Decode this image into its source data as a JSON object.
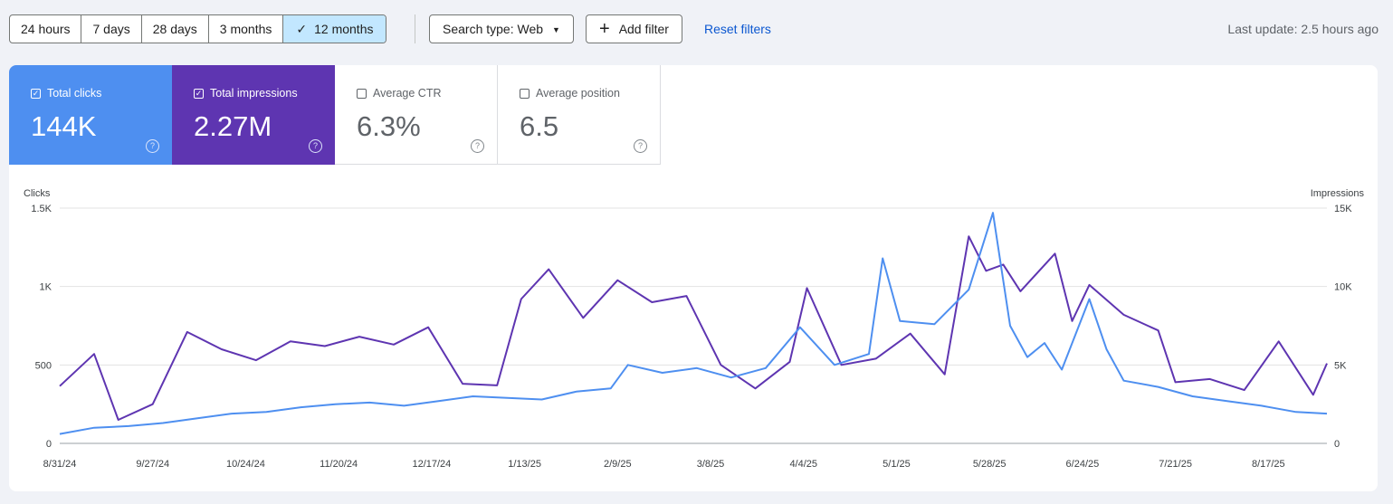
{
  "toolbar": {
    "ranges": [
      "24 hours",
      "7 days",
      "28 days",
      "3 months",
      "12 months"
    ],
    "active_range": "12 months",
    "search_type": "Search type: Web",
    "add_filter": "Add filter",
    "reset_filters": "Reset filters",
    "last_update": "Last update: 2.5 hours ago"
  },
  "metrics": {
    "clicks": {
      "label": "Total clicks",
      "value": "144K",
      "checked": true,
      "color": "#4e8ff0"
    },
    "impressions": {
      "label": "Total impressions",
      "value": "2.27M",
      "checked": true,
      "color": "#5e35b1"
    },
    "ctr": {
      "label": "Average CTR",
      "value": "6.3%",
      "checked": false
    },
    "position": {
      "label": "Average position",
      "value": "6.5",
      "checked": false
    }
  },
  "chart_data": {
    "type": "line",
    "left_axis": {
      "label": "Clicks",
      "ticks": [
        "0",
        "500",
        "1K",
        "1.5K"
      ],
      "range": [
        0,
        1500
      ]
    },
    "right_axis": {
      "label": "Impressions",
      "ticks": [
        "0",
        "5K",
        "10K",
        "15K"
      ],
      "range": [
        0,
        15000
      ]
    },
    "x_range": [
      "8/31/24",
      "9/3/25"
    ],
    "x_ticks": [
      "8/31/24",
      "9/27/24",
      "10/24/24",
      "11/20/24",
      "12/17/24",
      "1/13/25",
      "2/9/25",
      "3/8/25",
      "4/4/25",
      "5/1/25",
      "5/28/25",
      "6/24/25",
      "7/21/25",
      "8/17/25"
    ],
    "grid": true,
    "series": [
      {
        "name": "Total clicks",
        "axis": "left",
        "color": "#4e8ff0",
        "points": [
          [
            "8/31/24",
            60
          ],
          [
            "9/10/24",
            100
          ],
          [
            "9/20/24",
            110
          ],
          [
            "9/30/24",
            130
          ],
          [
            "10/10/24",
            160
          ],
          [
            "10/20/24",
            190
          ],
          [
            "10/30/24",
            200
          ],
          [
            "11/9/24",
            230
          ],
          [
            "11/19/24",
            250
          ],
          [
            "11/29/24",
            260
          ],
          [
            "12/9/24",
            240
          ],
          [
            "12/19/24",
            270
          ],
          [
            "12/29/24",
            300
          ],
          [
            "1/8/25",
            290
          ],
          [
            "1/18/25",
            280
          ],
          [
            "1/28/25",
            330
          ],
          [
            "2/7/25",
            350
          ],
          [
            "2/12/25",
            500
          ],
          [
            "2/22/25",
            450
          ],
          [
            "3/4/25",
            480
          ],
          [
            "3/14/25",
            420
          ],
          [
            "3/24/25",
            480
          ],
          [
            "4/3/25",
            740
          ],
          [
            "4/13/25",
            500
          ],
          [
            "4/23/25",
            570
          ],
          [
            "4/27/25",
            1180
          ],
          [
            "5/2/25",
            780
          ],
          [
            "5/12/25",
            760
          ],
          [
            "5/22/25",
            980
          ],
          [
            "5/29/25",
            1470
          ],
          [
            "6/3/25",
            750
          ],
          [
            "6/8/25",
            550
          ],
          [
            "6/13/25",
            640
          ],
          [
            "6/18/25",
            470
          ],
          [
            "6/26/25",
            920
          ],
          [
            "7/1/25",
            600
          ],
          [
            "7/6/25",
            400
          ],
          [
            "7/16/25",
            360
          ],
          [
            "7/26/25",
            300
          ],
          [
            "8/5/25",
            270
          ],
          [
            "8/15/25",
            240
          ],
          [
            "8/25/25",
            200
          ],
          [
            "9/3/25",
            190
          ]
        ]
      },
      {
        "name": "Total impressions",
        "axis": "right",
        "color": "#5e35b1",
        "points": [
          [
            "8/31/24",
            3650
          ],
          [
            "9/10/24",
            5700
          ],
          [
            "9/17/24",
            1500
          ],
          [
            "9/27/24",
            2500
          ],
          [
            "10/7/24",
            7100
          ],
          [
            "10/17/24",
            6000
          ],
          [
            "10/27/24",
            5300
          ],
          [
            "11/6/24",
            6500
          ],
          [
            "11/16/24",
            6200
          ],
          [
            "11/26/24",
            6800
          ],
          [
            "12/6/24",
            6300
          ],
          [
            "12/16/24",
            7400
          ],
          [
            "12/26/24",
            3800
          ],
          [
            "1/5/25",
            3700
          ],
          [
            "1/12/25",
            9200
          ],
          [
            "1/20/25",
            11100
          ],
          [
            "1/30/25",
            8000
          ],
          [
            "2/9/25",
            10400
          ],
          [
            "2/19/25",
            9000
          ],
          [
            "3/1/25",
            9400
          ],
          [
            "3/11/25",
            5000
          ],
          [
            "3/21/25",
            3500
          ],
          [
            "3/31/25",
            5200
          ],
          [
            "4/5/25",
            9900
          ],
          [
            "4/15/25",
            5000
          ],
          [
            "4/25/25",
            5400
          ],
          [
            "5/5/25",
            7000
          ],
          [
            "5/15/25",
            4400
          ],
          [
            "5/22/25",
            13200
          ],
          [
            "5/27/25",
            11000
          ],
          [
            "6/1/25",
            11400
          ],
          [
            "6/6/25",
            9700
          ],
          [
            "6/16/25",
            12100
          ],
          [
            "6/21/25",
            7800
          ],
          [
            "6/26/25",
            10100
          ],
          [
            "7/6/25",
            8200
          ],
          [
            "7/16/25",
            7200
          ],
          [
            "7/21/25",
            3900
          ],
          [
            "7/31/25",
            4100
          ],
          [
            "8/10/25",
            3400
          ],
          [
            "8/20/25",
            6500
          ],
          [
            "8/30/25",
            3100
          ],
          [
            "9/3/25",
            5100
          ]
        ]
      }
    ]
  }
}
